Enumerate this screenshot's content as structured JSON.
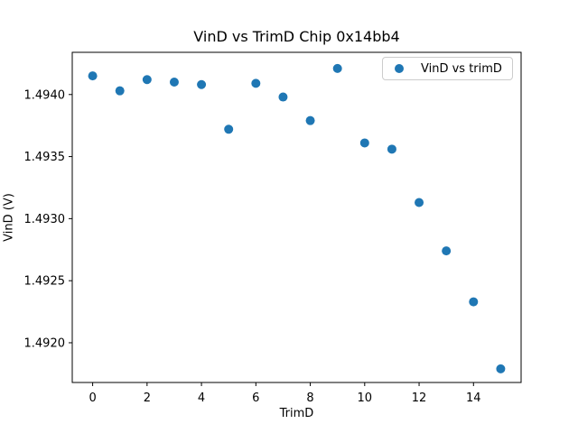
{
  "chart_data": {
    "type": "scatter",
    "title": "VinD vs TrimD Chip 0x14bb4",
    "xlabel": "TrimD",
    "ylabel": "VinD (V)",
    "grid": false,
    "legend": {
      "label": "VinD vs trimD",
      "position": "upper right",
      "marker": "dot-icon"
    },
    "series": [
      {
        "name": "VinD vs trimD",
        "x": [
          0,
          1,
          2,
          3,
          4,
          5,
          6,
          7,
          8,
          9,
          10,
          11,
          12,
          13,
          14,
          15
        ],
        "y": [
          1.49415,
          1.49403,
          1.49412,
          1.4941,
          1.49408,
          1.49372,
          1.49409,
          1.49398,
          1.49379,
          1.49421,
          1.49361,
          1.49356,
          1.49313,
          1.49274,
          1.49233,
          1.49179
        ]
      }
    ],
    "xlim": [
      -0.75,
      15.75
    ],
    "ylim": [
      1.49168,
      1.49434
    ],
    "xtick_values": [
      0,
      2,
      4,
      6,
      8,
      10,
      12,
      14
    ],
    "xtick_labels": [
      "0",
      "2",
      "4",
      "6",
      "8",
      "10",
      "12",
      "14"
    ],
    "ytick_values": [
      1.492,
      1.4925,
      1.493,
      1.4935,
      1.494
    ],
    "ytick_labels": [
      "1.4920",
      "1.4925",
      "1.4930",
      "1.4935",
      "1.4940"
    ],
    "colors": {
      "marker": "#1f77b4",
      "axis": "#000000",
      "text": "#000000",
      "legend_border": "#cccccc",
      "background": "#ffffff"
    }
  }
}
